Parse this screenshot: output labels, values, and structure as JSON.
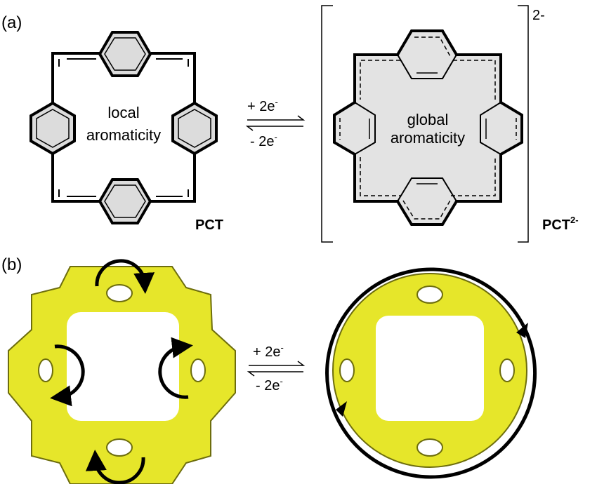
{
  "panel_a": {
    "label": "(a)",
    "left_molecule": {
      "text_line1": "local",
      "text_line2": "aromaticity",
      "name": "PCT"
    },
    "right_molecule": {
      "text_line1": "global",
      "text_line2": "aromaticity",
      "name_base": "PCT",
      "name_sup": "2-",
      "bracket_charge": "2-"
    },
    "forward": "+ 2e",
    "backward": "- 2e",
    "electron_sup": "-"
  },
  "panel_b": {
    "label": "(b)",
    "forward": "+ 2e",
    "backward": "- 2e",
    "electron_sup": "-"
  },
  "colors": {
    "ring_fill": "#dcdcdc",
    "dianion_fill": "#e3e3e3",
    "acid_yellow": "#e6e62a",
    "arrow": "#000000"
  }
}
